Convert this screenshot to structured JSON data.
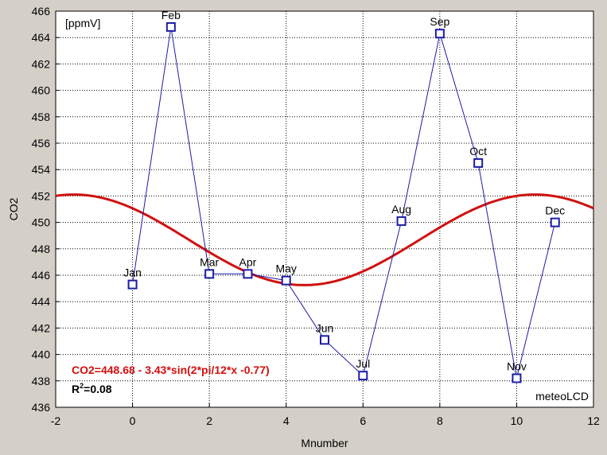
{
  "chart_data": {
    "type": "scatter",
    "xlabel": "Mnumber",
    "ylabel": "CO2",
    "unit_label": "[ppmV]",
    "watermark": "meteoLCD",
    "equation": "CO2=448.68 - 3.43*sin(2*pi/12*x -0.77)",
    "r2_prefix": "R",
    "r2_sup": "2",
    "r2_suffix": "=0.08",
    "xlim": [
      -2,
      12
    ],
    "ylim": [
      436,
      466
    ],
    "x_ticks": [
      "-2",
      "0",
      "2",
      "4",
      "6",
      "8",
      "10",
      "12"
    ],
    "y_ticks": [
      "436",
      "438",
      "440",
      "442",
      "444",
      "446",
      "448",
      "450",
      "452",
      "454",
      "456",
      "458",
      "460",
      "462",
      "464",
      "466"
    ],
    "grid": true,
    "series": [
      {
        "points": [
          {
            "x": 0,
            "y": 445.3,
            "label": "Jan"
          },
          {
            "x": 1,
            "y": 464.8,
            "label": "Feb"
          },
          {
            "x": 2,
            "y": 446.1,
            "label": "Mar"
          },
          {
            "x": 3,
            "y": 446.1,
            "label": "Apr"
          },
          {
            "x": 4,
            "y": 445.6,
            "label": "May"
          },
          {
            "x": 5,
            "y": 441.1,
            "label": "Jun"
          },
          {
            "x": 6,
            "y": 438.4,
            "label": "Jul"
          },
          {
            "x": 7,
            "y": 450.1,
            "label": "Aug"
          },
          {
            "x": 8,
            "y": 464.3,
            "label": "Sep"
          },
          {
            "x": 9,
            "y": 454.5,
            "label": "Oct"
          },
          {
            "x": 10,
            "y": 438.2,
            "label": "Nov"
          },
          {
            "x": 11,
            "y": 450.0,
            "label": "Dec"
          }
        ]
      }
    ],
    "fit": {
      "a": 448.68,
      "b": -3.43,
      "phase": -0.77
    },
    "colors": {
      "points": "#1c1ca8",
      "fit": "#d01010",
      "equation": "#d01010",
      "grid": "#000000",
      "plot_bg": "#ffffff",
      "frame_bg": "#d4d0c8"
    }
  }
}
